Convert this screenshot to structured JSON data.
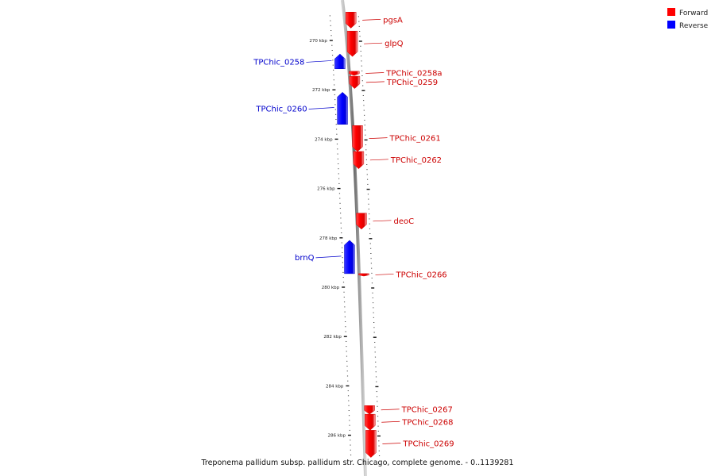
{
  "caption": "Treponema pallidum subsp. pallidum str. Chicago, complete genome. - 0..1139281",
  "legend": {
    "forward": {
      "label": "Forward",
      "color": "#ff0000"
    },
    "reverse": {
      "label": "Reverse",
      "color": "#0000ff"
    }
  },
  "ticks": [
    {
      "kbp": 270,
      "label": "270 kbp"
    },
    {
      "kbp": 272,
      "label": "272 kbp"
    },
    {
      "kbp": 274,
      "label": "274 kbp"
    },
    {
      "kbp": 276,
      "label": "276 kbp"
    },
    {
      "kbp": 278,
      "label": "278 kbp"
    },
    {
      "kbp": 280,
      "label": "280 kbp"
    },
    {
      "kbp": 282,
      "label": "282 kbp"
    },
    {
      "kbp": 284,
      "label": "284 kbp"
    },
    {
      "kbp": 286,
      "label": "286 kbp"
    }
  ],
  "genes": [
    {
      "name": "pgsA",
      "strand": "forward",
      "start_kbp": 268.85,
      "end_kbp": 269.5
    },
    {
      "name": "glpQ",
      "strand": "forward",
      "start_kbp": 269.62,
      "end_kbp": 270.65
    },
    {
      "name": "TPChic_0258",
      "strand": "reverse",
      "start_kbp": 270.55,
      "end_kbp": 271.15
    },
    {
      "name": "TPChic_0258a",
      "strand": "forward",
      "start_kbp": 271.25,
      "end_kbp": 271.42
    },
    {
      "name": "TPChic_0259",
      "strand": "forward",
      "start_kbp": 271.45,
      "end_kbp": 271.95
    },
    {
      "name": "TPChic_0260",
      "strand": "reverse",
      "start_kbp": 272.1,
      "end_kbp": 273.4
    },
    {
      "name": "TPChic_0261",
      "strand": "forward",
      "start_kbp": 273.45,
      "end_kbp": 274.5
    },
    {
      "name": "TPChic_0262",
      "strand": "forward",
      "start_kbp": 274.5,
      "end_kbp": 275.2
    },
    {
      "name": "deoC",
      "strand": "forward",
      "start_kbp": 277.0,
      "end_kbp": 277.65
    },
    {
      "name": "brnQ",
      "strand": "reverse",
      "start_kbp": 278.1,
      "end_kbp": 279.45
    },
    {
      "name": "TPChic_0266",
      "strand": "forward",
      "start_kbp": 279.45,
      "end_kbp": 279.55
    },
    {
      "name": "TPChic_0267",
      "strand": "forward",
      "start_kbp": 284.8,
      "end_kbp": 285.15
    },
    {
      "name": "TPChic_0268",
      "strand": "forward",
      "start_kbp": 285.15,
      "end_kbp": 285.8
    },
    {
      "name": "TPChic_0269",
      "strand": "forward",
      "start_kbp": 285.8,
      "end_kbp": 286.9
    }
  ]
}
